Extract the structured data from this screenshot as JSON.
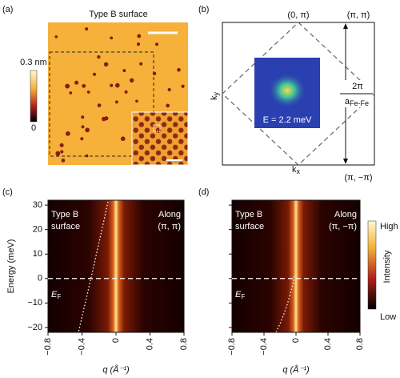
{
  "panel_a": {
    "label": "(a)",
    "title": "Type B surface",
    "colorbar_max": "0.3 nm",
    "colorbar_min": "0"
  },
  "panel_b": {
    "label": "(b)",
    "top_label": "(0, π)",
    "top_right_label": "(π, π)",
    "bottom_right_label": "(π, −π)",
    "ky": "k",
    "ky_sub": "y",
    "kx": "k",
    "kx_sub": "x",
    "scale_num": "2π",
    "scale_den": "a",
    "scale_den_sub": "Fe-Fe",
    "energy": "E = 2.2 meV"
  },
  "panel_c": {
    "label": "(c)",
    "type_line1": "Type B",
    "type_line2": "surface",
    "along_line1": "Along",
    "along_line2": "(π, π)",
    "ef": "E",
    "ef_sub": "F"
  },
  "panel_d": {
    "label": "(d)",
    "type_line1": "Type B",
    "type_line2": "surface",
    "along_line1": "Along",
    "along_line2": "(π, −π)",
    "ef": "E",
    "ef_sub": "F",
    "colorbar_high": "High",
    "colorbar_low": "Low",
    "colorbar_title": "Intensity"
  },
  "axes": {
    "ylabel": "Energy (meV)",
    "xlabel": "q (Å⁻¹)",
    "xlim": [
      -0.8,
      0.8
    ],
    "ylim": [
      -22,
      32
    ],
    "yticks": [
      {
        "value": -20,
        "label": "−20"
      },
      {
        "value": -10,
        "label": "−10"
      },
      0,
      10,
      20,
      30
    ],
    "xticks": [
      {
        "value": -0.8,
        "label": "−0.8"
      },
      {
        "value": -0.4,
        "label": "−0.4"
      },
      0,
      0.4,
      0.8
    ]
  }
}
